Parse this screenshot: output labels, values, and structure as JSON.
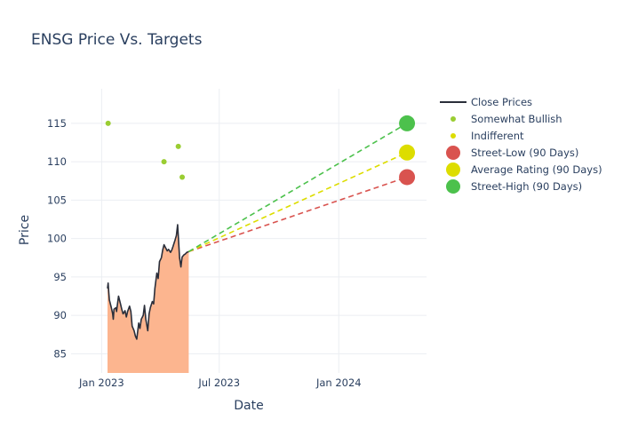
{
  "chart_data": {
    "type": "line",
    "title": "ENSG Price Vs. Targets",
    "xlabel": "Date",
    "ylabel": "Price",
    "xlim": [
      "2022-11-15",
      "2024-05-15"
    ],
    "ylim": [
      82.5,
      119.5
    ],
    "x_ticks": [
      {
        "value": "2023-01-01",
        "label": "Jan 2023"
      },
      {
        "value": "2023-07-01",
        "label": "Jul 2023"
      },
      {
        "value": "2024-01-01",
        "label": "Jan 2024"
      }
    ],
    "y_ticks": [
      85,
      90,
      95,
      100,
      105,
      110,
      115
    ],
    "grid": true,
    "legend_position": "right",
    "series": [
      {
        "name": "Close Prices",
        "kind": "line-area",
        "color": "#2a2e3a",
        "fill_color": "#fcb58f",
        "x": [
          "2023-01-10",
          "2023-01-11",
          "2023-01-12",
          "2023-01-13",
          "2023-01-16",
          "2023-01-18",
          "2023-01-19",
          "2023-01-20",
          "2023-01-23",
          "2023-01-24",
          "2023-01-25",
          "2023-01-27",
          "2023-01-30",
          "2023-02-01",
          "2023-02-03",
          "2023-02-06",
          "2023-02-08",
          "2023-02-10",
          "2023-02-13",
          "2023-02-15",
          "2023-02-17",
          "2023-02-20",
          "2023-02-22",
          "2023-02-24",
          "2023-02-27",
          "2023-03-01",
          "2023-03-03",
          "2023-03-06",
          "2023-03-08",
          "2023-03-10",
          "2023-03-13",
          "2023-03-15",
          "2023-03-17",
          "2023-03-20",
          "2023-03-22",
          "2023-03-24",
          "2023-03-27",
          "2023-03-29",
          "2023-03-31",
          "2023-04-03",
          "2023-04-05",
          "2023-04-07",
          "2023-04-10",
          "2023-04-12",
          "2023-04-14",
          "2023-04-17",
          "2023-04-19",
          "2023-04-21",
          "2023-04-24",
          "2023-04-26",
          "2023-04-28",
          "2023-05-01",
          "2023-05-03",
          "2023-05-04",
          "2023-05-05",
          "2023-05-08",
          "2023-05-10",
          "2023-05-12",
          "2023-05-15"
        ],
        "y": [
          93.5,
          94.2,
          93.0,
          92.0,
          91.0,
          90.2,
          89.5,
          90.8,
          91.0,
          90.5,
          91.2,
          92.5,
          91.5,
          90.8,
          90.2,
          90.6,
          89.8,
          90.5,
          91.2,
          90.5,
          88.6,
          88.0,
          87.3,
          86.9,
          89.0,
          88.3,
          89.5,
          90.0,
          91.3,
          89.5,
          88.0,
          90.2,
          91.0,
          91.8,
          91.5,
          93.5,
          95.5,
          94.8,
          97.0,
          97.5,
          98.5,
          99.2,
          98.7,
          98.4,
          98.6,
          98.2,
          98.5,
          99.0,
          99.8,
          100.4,
          101.8,
          97.5,
          96.3,
          97.0,
          97.6,
          97.9,
          98.0,
          98.2,
          98.3
        ]
      },
      {
        "name": "Somewhat Bullish",
        "kind": "markers",
        "color": "#9acd32",
        "x": [
          "2023-01-11",
          "2023-04-07",
          "2023-04-29",
          "2023-05-05"
        ],
        "y": [
          115,
          110,
          112,
          108
        ]
      },
      {
        "name": "Indifferent",
        "kind": "markers",
        "color": "#dddd00",
        "x": [],
        "y": []
      },
      {
        "name": "Street-Low (90 Days)",
        "kind": "target",
        "color": "#d9534f",
        "start": {
          "x": "2023-05-15",
          "y": 98.3
        },
        "end": {
          "x": "2024-04-15",
          "y": 108
        }
      },
      {
        "name": "Average Rating (90 Days)",
        "kind": "target",
        "color": "#dddd00",
        "start": {
          "x": "2023-05-15",
          "y": 98.3
        },
        "end": {
          "x": "2024-04-15",
          "y": 111.2
        }
      },
      {
        "name": "Street-High (90 Days)",
        "kind": "target",
        "color": "#4cc14c",
        "start": {
          "x": "2023-05-15",
          "y": 98.3
        },
        "end": {
          "x": "2024-04-15",
          "y": 115
        }
      }
    ]
  }
}
